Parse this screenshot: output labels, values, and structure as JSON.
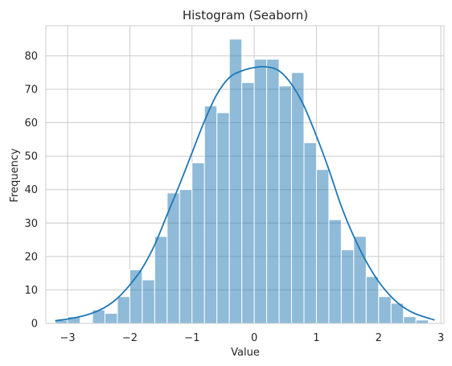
{
  "chart_data": {
    "type": "bar",
    "title": "Histogram (Seaborn)",
    "xlabel": "Value",
    "ylabel": "Frequency",
    "xlim": [
      -3.35,
      3.05
    ],
    "ylim": [
      0,
      89
    ],
    "xticks": [
      -3,
      -2,
      -1,
      0,
      1,
      2,
      3
    ],
    "yticks": [
      0,
      10,
      20,
      30,
      40,
      50,
      60,
      70,
      80
    ],
    "grid": true,
    "bin_edges": [
      -3.2,
      -3.0,
      -2.8,
      -2.6,
      -2.4,
      -2.2,
      -2.0,
      -1.8,
      -1.6,
      -1.4,
      -1.2,
      -1.0,
      -0.8,
      -0.6,
      -0.4,
      -0.2,
      0.0,
      0.2,
      0.4,
      0.6,
      0.8,
      1.0,
      1.2,
      1.4,
      1.6,
      1.8,
      2.0,
      2.2,
      2.4,
      2.6,
      2.8
    ],
    "counts": [
      1,
      2,
      0,
      4,
      3,
      8,
      16,
      13,
      26,
      39,
      40,
      48,
      65,
      63,
      85,
      72,
      79,
      79,
      71,
      75,
      54,
      46,
      31,
      22,
      26,
      14,
      8,
      6,
      2,
      1
    ],
    "kde": {
      "x": [
        -3.2,
        -3.0,
        -2.8,
        -2.6,
        -2.4,
        -2.2,
        -2.0,
        -1.8,
        -1.6,
        -1.4,
        -1.2,
        -1.0,
        -0.8,
        -0.6,
        -0.4,
        -0.2,
        0.0,
        0.2,
        0.4,
        0.6,
        0.8,
        1.0,
        1.2,
        1.4,
        1.6,
        1.8,
        2.0,
        2.2,
        2.4,
        2.6,
        2.9
      ],
      "y": [
        0.8,
        1.3,
        2.0,
        3.1,
        4.8,
        7.5,
        11.5,
        16.5,
        23.5,
        32.5,
        41.5,
        51.0,
        60.5,
        68.5,
        73.5,
        75.5,
        76.5,
        76.7,
        75.5,
        71.5,
        65.0,
        56.0,
        46.0,
        35.0,
        26.0,
        18.5,
        12.5,
        8.0,
        4.8,
        2.8,
        1.0
      ]
    }
  }
}
